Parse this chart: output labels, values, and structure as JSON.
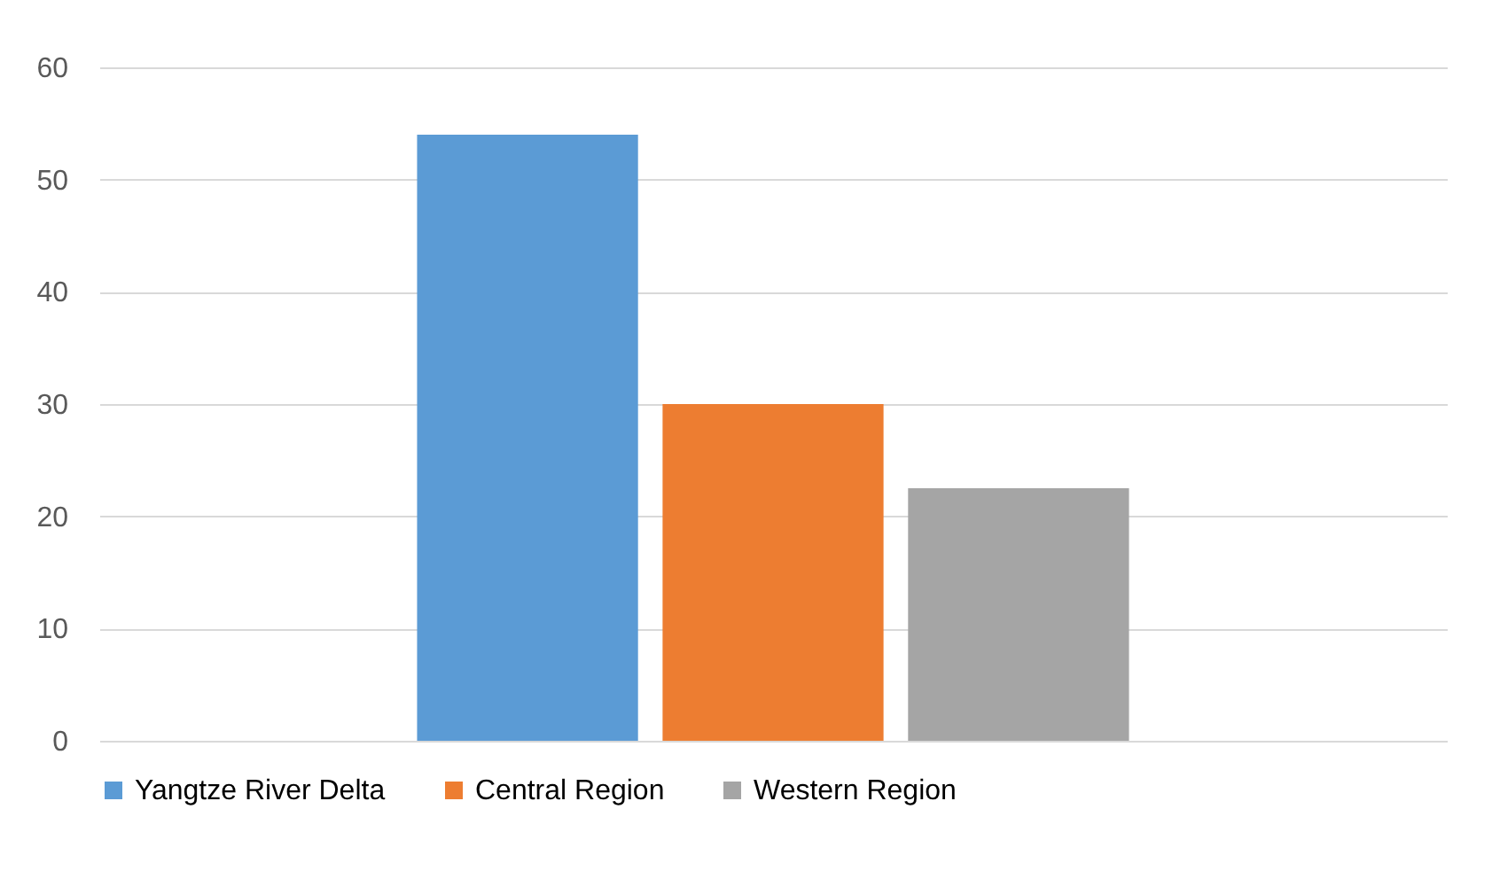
{
  "chart_data": {
    "type": "bar",
    "categories": [
      null
    ],
    "series": [
      {
        "name": "Yangtze River Delta",
        "color": "#5b9bd5",
        "values": [
          54
        ]
      },
      {
        "name": "Central Region",
        "color": "#ed7d31",
        "values": [
          30
        ]
      },
      {
        "name": "Western Region",
        "color": "#a5a5a5",
        "values": [
          22.5
        ]
      }
    ],
    "ylim": [
      0,
      60
    ],
    "yticks": [
      0,
      10,
      20,
      30,
      40,
      50,
      60
    ],
    "grid": "y",
    "legend": "bottom"
  }
}
